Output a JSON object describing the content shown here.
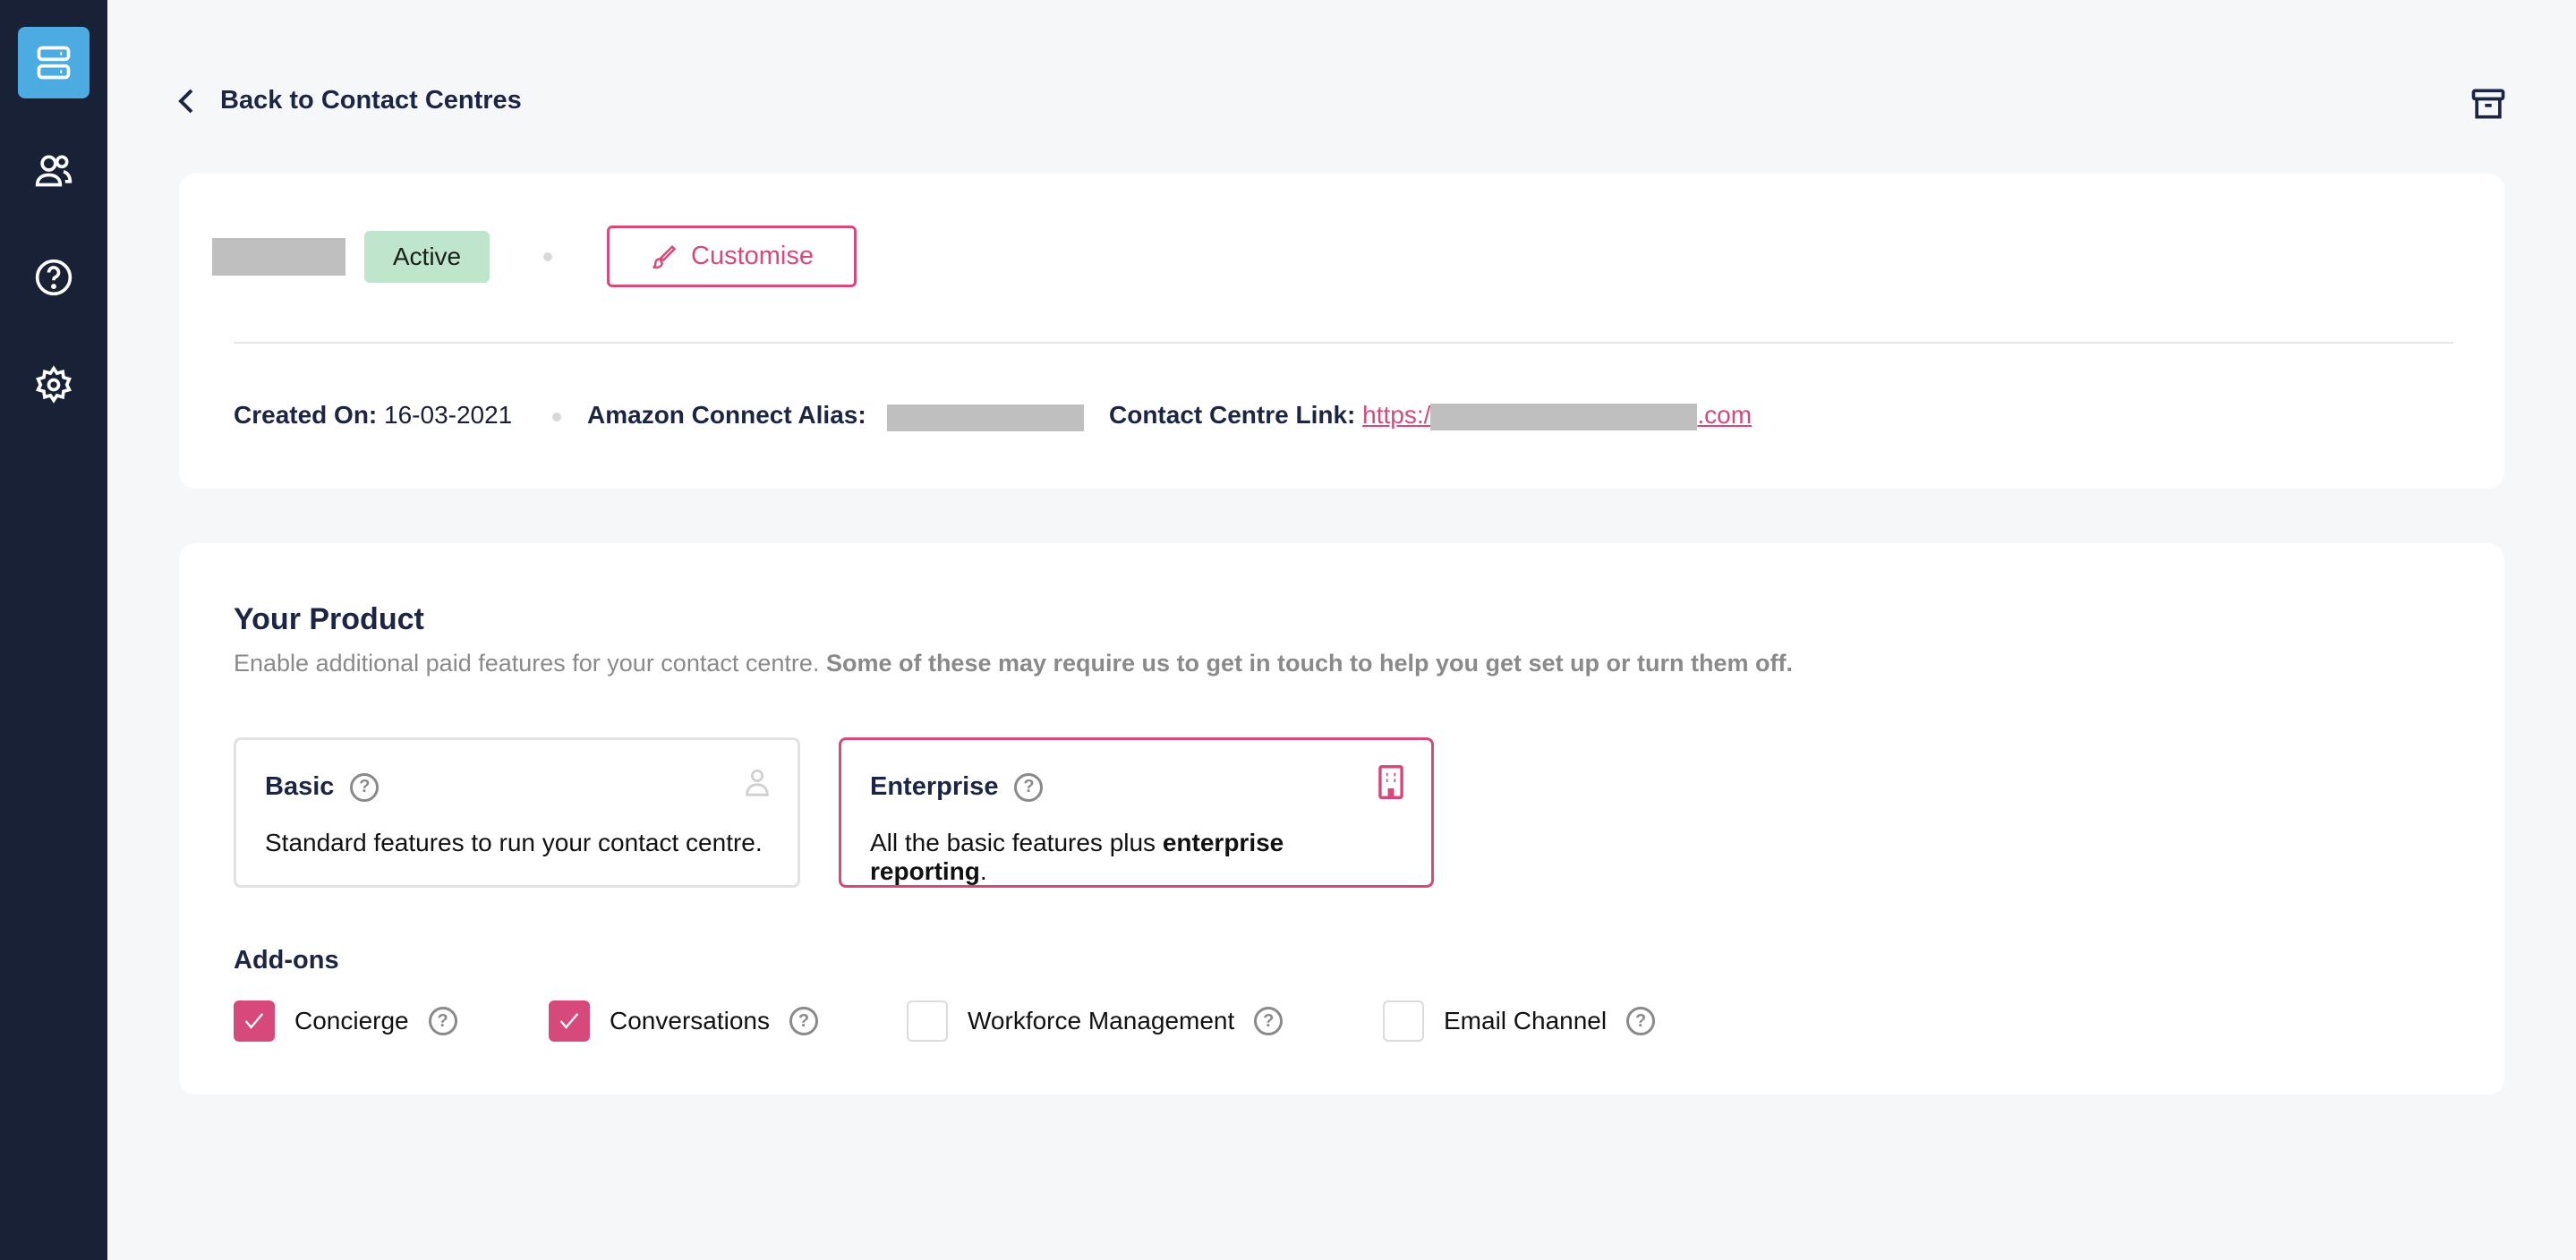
{
  "sidebar": {
    "items": [
      {
        "name": "contact-centres",
        "icon": "server-icon",
        "active": true
      },
      {
        "name": "users",
        "icon": "users-icon"
      },
      {
        "name": "help",
        "icon": "help-circle-icon"
      },
      {
        "name": "settings",
        "icon": "gear-icon"
      }
    ]
  },
  "header": {
    "back_label": "Back to Contact Centres",
    "archive_icon": "archive-icon"
  },
  "summary": {
    "status": "Active",
    "customise_label": "Customise",
    "created_on_label": "Created On:",
    "created_on": "16-03-2021",
    "alias_label": "Amazon Connect Alias:",
    "link_label": "Contact Centre Link:",
    "link_prefix": "https:/",
    "link_suffix": ".com"
  },
  "product": {
    "title": "Your Product",
    "subtitle": "Enable additional paid features for your contact centre.",
    "subtitle_bold": "Some of these may require us to get in touch to help you get set up or turn them off.",
    "plans": [
      {
        "name": "Basic",
        "description": "Standard features to run your contact centre.",
        "selected": false,
        "icon": "user-icon"
      },
      {
        "name": "Enterprise",
        "description": "All the basic features plus",
        "description_bold": "enterprise reporting",
        "description_end": ".",
        "selected": true,
        "icon": "building-icon"
      }
    ],
    "addons_title": "Add-ons",
    "addons": [
      {
        "label": "Concierge",
        "checked": true
      },
      {
        "label": "Conversations",
        "checked": true
      },
      {
        "label": "Workforce Management",
        "checked": false
      },
      {
        "label": "Email Channel",
        "checked": false
      }
    ]
  },
  "colors": {
    "accent": "#d6497a",
    "sidebar": "#192136",
    "active_nav": "#4cabe0",
    "status_bg": "#bfe6cc"
  }
}
